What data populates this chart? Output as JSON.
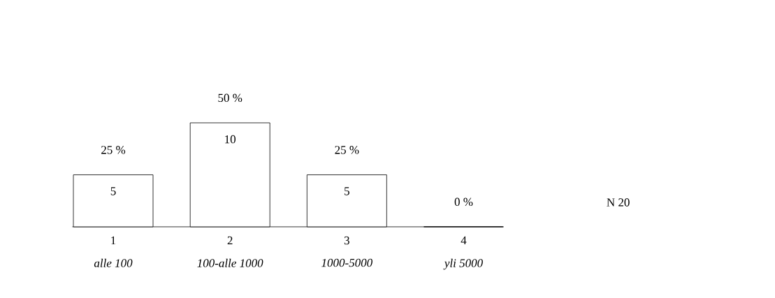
{
  "chart_data": {
    "type": "bar",
    "categories": [
      "1",
      "2",
      "3",
      "4"
    ],
    "values": [
      5,
      10,
      5,
      0
    ],
    "value_labels": [
      "5",
      "10",
      "5",
      null
    ],
    "color": "#ffffff",
    "annotations": [
      {
        "text": "25 %",
        "x": "1",
        "y": 5
      },
      {
        "text": "50 %",
        "x": "2",
        "y": 10
      },
      {
        "text": "25 %",
        "x": "3",
        "y": 5
      },
      {
        "text": "0 %",
        "x": "4",
        "y": 0
      },
      "*alle 100*",
      "*100-alle 1000*",
      "*1000-5000*",
      "*yli 5000*",
      "N    20"
    ]
  }
}
